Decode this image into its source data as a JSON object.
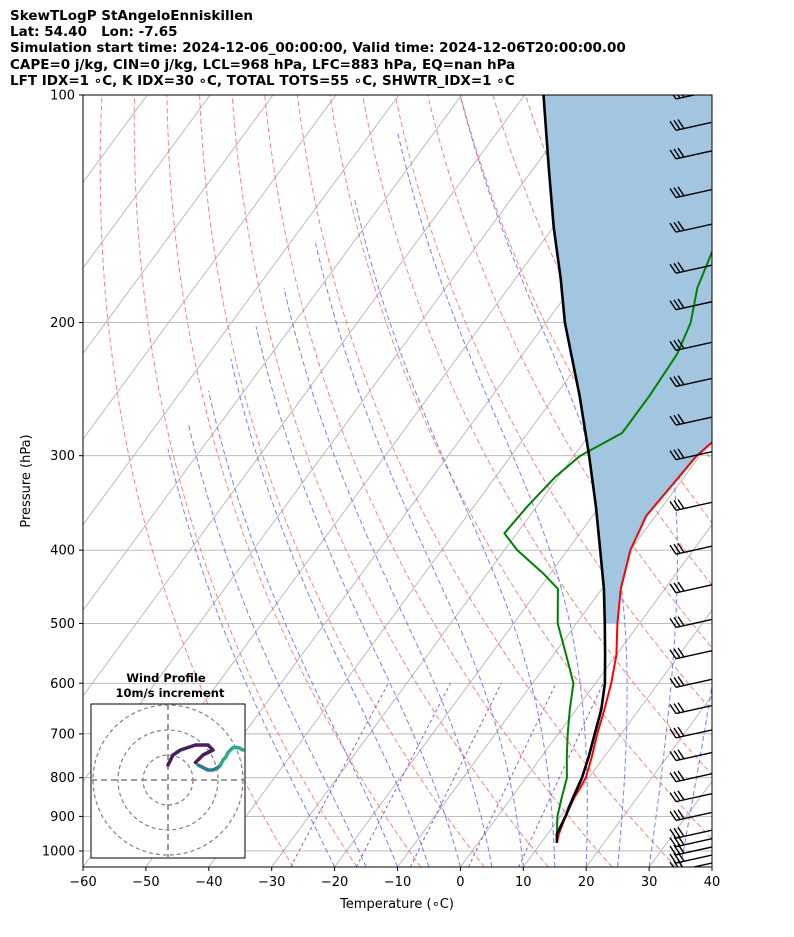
{
  "header": {
    "lines": [
      "SkewTLogP StAngeloEnniskillen",
      "Lat: 54.40   Lon: -7.65",
      "Simulation start time: 2024-12-06_00:00:00, Valid time: 2024-12-06T20:00:00.00",
      "CAPE=0 j/kg, CIN=0 j/kg, LCL=968 hPa, LFC=883 hPa, EQ=nan hPa",
      "LFT IDX=1 ∘C, K IDX=30 ∘C, TOTAL TOTS=55 ∘C, SHWTR_IDX=1 ∘C"
    ]
  },
  "chart_data": [
    {
      "type": "line",
      "subtype": "skew-t log-p",
      "xlabel": "Temperature (∘C)",
      "ylabel": "Pressure (hPa)",
      "xlim": [
        -60,
        40
      ],
      "ylim": [
        1050,
        100
      ],
      "y_scale": "log",
      "x_ticks": [
        "−60",
        "−50",
        "−40",
        "−30",
        "−20",
        "−10",
        "0",
        "10",
        "20",
        "30",
        "40"
      ],
      "y_ticks": [
        "100",
        "200",
        "300",
        "400",
        "500",
        "600",
        "700",
        "800",
        "900",
        "1000"
      ],
      "grid": true,
      "colors": {
        "temperature": "#ff0000",
        "dewpoint": "#008000",
        "parcel": "#000000",
        "cape_shade": "#a2c6df",
        "dry_adiabats": "#ff6a6a",
        "moist_adiabats": "#5d67ff",
        "mixing_ratio": "#9b4fd1",
        "isotherms": "#b4b4b4"
      },
      "series": [
        {
          "key": "temperature",
          "pressure": [
            975,
            950,
            900,
            850,
            800,
            750,
            700,
            650,
            600,
            550,
            500,
            450,
            400,
            360,
            330,
            300,
            280,
            250,
            230,
            200,
            180,
            160,
            140,
            120,
            100
          ],
          "values": [
            12.5,
            11.8,
            10.8,
            10.0,
            9.5,
            8.0,
            6.2,
            4.5,
            2.5,
            0.0,
            -3.5,
            -7.0,
            -10.0,
            -11.5,
            -11.0,
            -10.5,
            -9.0,
            -6.0,
            -4.5,
            -3.5,
            -2.5,
            -0.5,
            0.5,
            3.0,
            3.0
          ]
        },
        {
          "key": "dewpoint",
          "pressure": [
            975,
            950,
            900,
            850,
            800,
            750,
            700,
            650,
            600,
            550,
            500,
            450,
            430,
            400,
            380,
            350,
            320,
            300,
            280,
            250,
            220,
            200,
            180,
            160,
            140,
            120,
            100
          ],
          "values": [
            12.5,
            11.5,
            9.5,
            8.0,
            6.5,
            4.0,
            1.5,
            -1.0,
            -3.5,
            -8.0,
            -13.0,
            -17.0,
            -21.0,
            -28.0,
            -32.0,
            -31.5,
            -30.5,
            -29.0,
            -25.0,
            -25.0,
            -25.5,
            -27.0,
            -30.0,
            -32.0,
            -34.0,
            -35.0,
            -39.0
          ]
        },
        {
          "key": "parcel",
          "pressure": [
            975,
            950,
            900,
            850,
            800,
            750,
            700,
            650,
            600,
            550,
            500,
            450,
            400,
            350,
            300,
            250,
            200,
            175,
            150,
            125,
            100
          ],
          "values": [
            12.5,
            11.5,
            10.8,
            9.8,
            8.9,
            7.5,
            5.8,
            4.0,
            1.5,
            -1.8,
            -5.5,
            -9.7,
            -14.8,
            -20.6,
            -27.6,
            -36.1,
            -47.0,
            -52.8,
            -59.8,
            -67.6,
            -77.0
          ]
        }
      ],
      "wind_barbs": {
        "pressure": [
          1050,
          1025,
          1000,
          975,
          950,
          900,
          850,
          800,
          750,
          700,
          650,
          600,
          550,
          500,
          450,
          400,
          350,
          300,
          270,
          240,
          215,
          190,
          170,
          150,
          135,
          120,
          110,
          100
        ]
      }
    },
    {
      "type": "line",
      "subtype": "hodograph",
      "title": "Wind Profile",
      "subtitle": "10m/s increment",
      "ring_step": 10,
      "rings": [
        10,
        20,
        30
      ],
      "series": [
        {
          "u": [
            12,
            14,
            16,
            18,
            20,
            21
          ],
          "v": [
            6,
            5,
            4,
            4,
            5,
            6
          ]
        },
        {
          "u": [
            21,
            22,
            23,
            24,
            25,
            26,
            28,
            30
          ],
          "v": [
            6,
            8,
            9,
            11,
            12,
            13,
            13,
            12
          ]
        },
        {
          "u": [
            0,
            2,
            5,
            8,
            11,
            14,
            16,
            17,
            18,
            16,
            14,
            12,
            11
          ],
          "v": [
            6,
            10,
            12,
            13,
            14,
            14,
            14,
            13,
            12,
            11,
            10,
            8,
            7
          ]
        }
      ]
    }
  ]
}
